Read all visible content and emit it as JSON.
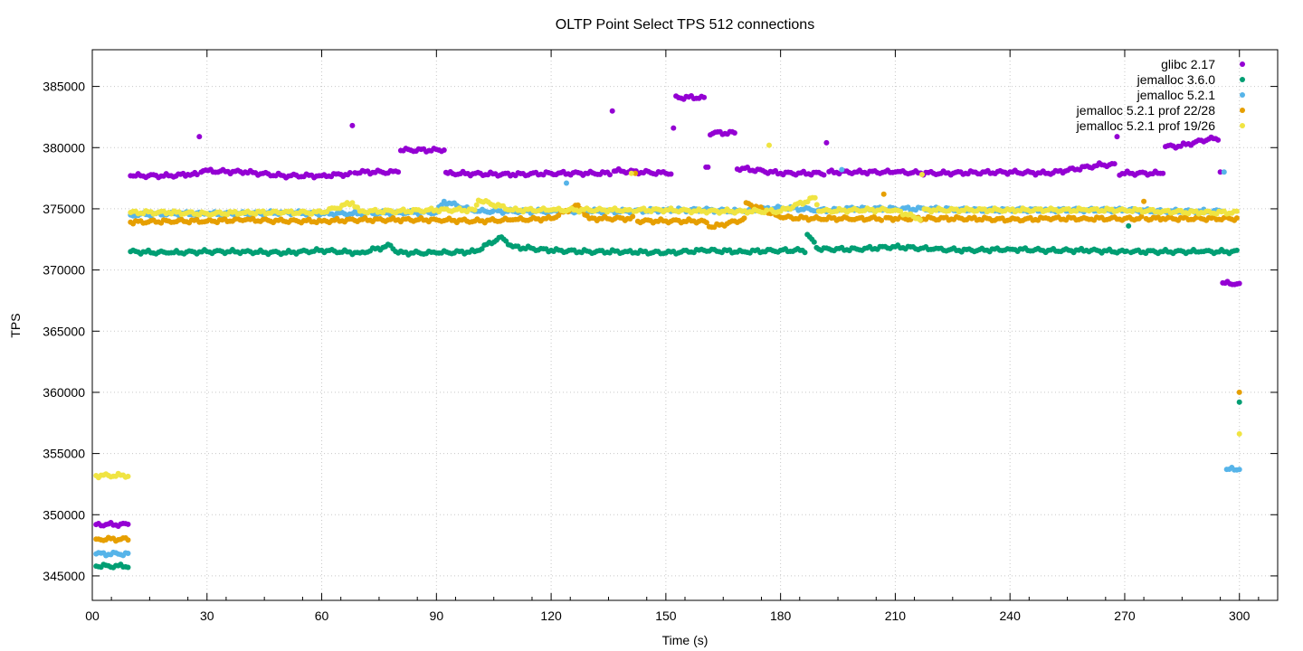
{
  "chart_data": {
    "type": "scatter",
    "title": "OLTP Point Select TPS 512 connections",
    "xlabel": "Time (s)",
    "ylabel": "TPS",
    "xlim": [
      0,
      310
    ],
    "ylim": [
      343000,
      388000
    ],
    "x_ticks": [
      0,
      30,
      60,
      90,
      120,
      150,
      180,
      210,
      240,
      270,
      300
    ],
    "x_tick_labels": [
      "00",
      "30",
      "60",
      "90",
      "120",
      "150",
      "180",
      "210",
      "240",
      "270",
      "300"
    ],
    "y_ticks": [
      345000,
      350000,
      355000,
      360000,
      365000,
      370000,
      375000,
      380000,
      385000
    ],
    "y_tick_labels": [
      "345000",
      "350000",
      "355000",
      "360000",
      "365000",
      "370000",
      "375000",
      "380000",
      "385000"
    ],
    "grid": true,
    "legend_position": "top-right",
    "series": [
      {
        "name": "glibc 2.17",
        "color": "#9400d3",
        "x": [
          1,
          10,
          20,
          25,
          28,
          29,
          40,
          50,
          60,
          65,
          68,
          80,
          92,
          93,
          110,
          120,
          136,
          137,
          150,
          152,
          160,
          161,
          168,
          170,
          180,
          192,
          200,
          210,
          220,
          240,
          250,
          264,
          268,
          280,
          284,
          292,
          295,
          300
        ],
        "y": [
          349200,
          377700,
          377700,
          377800,
          380900,
          378100,
          378000,
          377700,
          377700,
          377800,
          381800,
          378000,
          379800,
          377900,
          377800,
          377900,
          383000,
          378100,
          377900,
          381600,
          384100,
          378400,
          381200,
          378300,
          377900,
          380400,
          378000,
          378000,
          377900,
          378000,
          377900,
          378600,
          380900,
          377900,
          380100,
          380700,
          378000,
          368900
        ]
      },
      {
        "name": "jemalloc 3.6.0",
        "color": "#009e73",
        "x": [
          1,
          10,
          20,
          30,
          40,
          50,
          60,
          70,
          78,
          80,
          90,
          100,
          107,
          110,
          120,
          130,
          140,
          150,
          160,
          170,
          180,
          187,
          190,
          200,
          210,
          220,
          230,
          240,
          250,
          260,
          270,
          271,
          280,
          290,
          300
        ],
        "y": [
          345800,
          371500,
          371400,
          371500,
          371500,
          371400,
          371600,
          371400,
          372000,
          371400,
          371400,
          371500,
          372700,
          371900,
          371600,
          371500,
          371500,
          371400,
          371600,
          371500,
          371600,
          372900,
          371700,
          371700,
          371900,
          371700,
          371600,
          371700,
          371600,
          371600,
          371500,
          373600,
          371500,
          371500,
          359200
        ]
      },
      {
        "name": "jemalloc 5.2.1",
        "color": "#56b4e9",
        "x": [
          1,
          10,
          20,
          30,
          40,
          50,
          60,
          70,
          80,
          90,
          92,
          100,
          110,
          120,
          124,
          130,
          140,
          150,
          160,
          170,
          180,
          190,
          196,
          200,
          210,
          220,
          230,
          240,
          250,
          260,
          270,
          280,
          290,
          296,
          300
        ],
        "y": [
          346800,
          374500,
          374600,
          374600,
          374600,
          374700,
          374600,
          374600,
          374700,
          374700,
          375600,
          374800,
          374800,
          374800,
          377100,
          374800,
          374800,
          374900,
          374900,
          374800,
          375100,
          374900,
          378200,
          375000,
          375000,
          375000,
          374900,
          374900,
          374900,
          374900,
          374900,
          374800,
          374800,
          378000,
          353700
        ]
      },
      {
        "name": "jemalloc 5.2.1 prof 22/28",
        "color": "#e69f00",
        "x": [
          1,
          10,
          20,
          30,
          40,
          50,
          60,
          70,
          80,
          90,
          100,
          110,
          120,
          127,
          130,
          140,
          142,
          150,
          160,
          162,
          170,
          171,
          180,
          190,
          200,
          207,
          210,
          220,
          230,
          240,
          250,
          260,
          270,
          275,
          280,
          290,
          300
        ],
        "y": [
          348000,
          373900,
          374000,
          374000,
          374100,
          374000,
          374000,
          374100,
          374100,
          374100,
          374000,
          374100,
          374200,
          375300,
          374200,
          374200,
          377900,
          374000,
          374000,
          373500,
          374100,
          375500,
          374300,
          374200,
          374200,
          376200,
          374200,
          374200,
          374200,
          374100,
          374200,
          374200,
          374200,
          375600,
          374200,
          374200,
          360000
        ]
      },
      {
        "name": "jemalloc 5.2.1 prof 19/26",
        "color": "#f0e442",
        "x": [
          1,
          10,
          20,
          30,
          40,
          50,
          60,
          68,
          70,
          80,
          90,
          100,
          101,
          110,
          120,
          130,
          140,
          141,
          150,
          160,
          170,
          177,
          180,
          189,
          190,
          200,
          210,
          216,
          217,
          220,
          230,
          240,
          250,
          260,
          270,
          280,
          290,
          300
        ],
        "y": [
          353200,
          374700,
          374700,
          374600,
          374700,
          374700,
          374700,
          375500,
          374800,
          374800,
          374900,
          374900,
          375700,
          374900,
          374900,
          374900,
          374900,
          377900,
          374900,
          374800,
          374800,
          380200,
          374800,
          375900,
          374800,
          374900,
          374900,
          374200,
          377800,
          374900,
          374900,
          374900,
          374900,
          374900,
          374900,
          374800,
          374700,
          356600
        ]
      }
    ]
  }
}
